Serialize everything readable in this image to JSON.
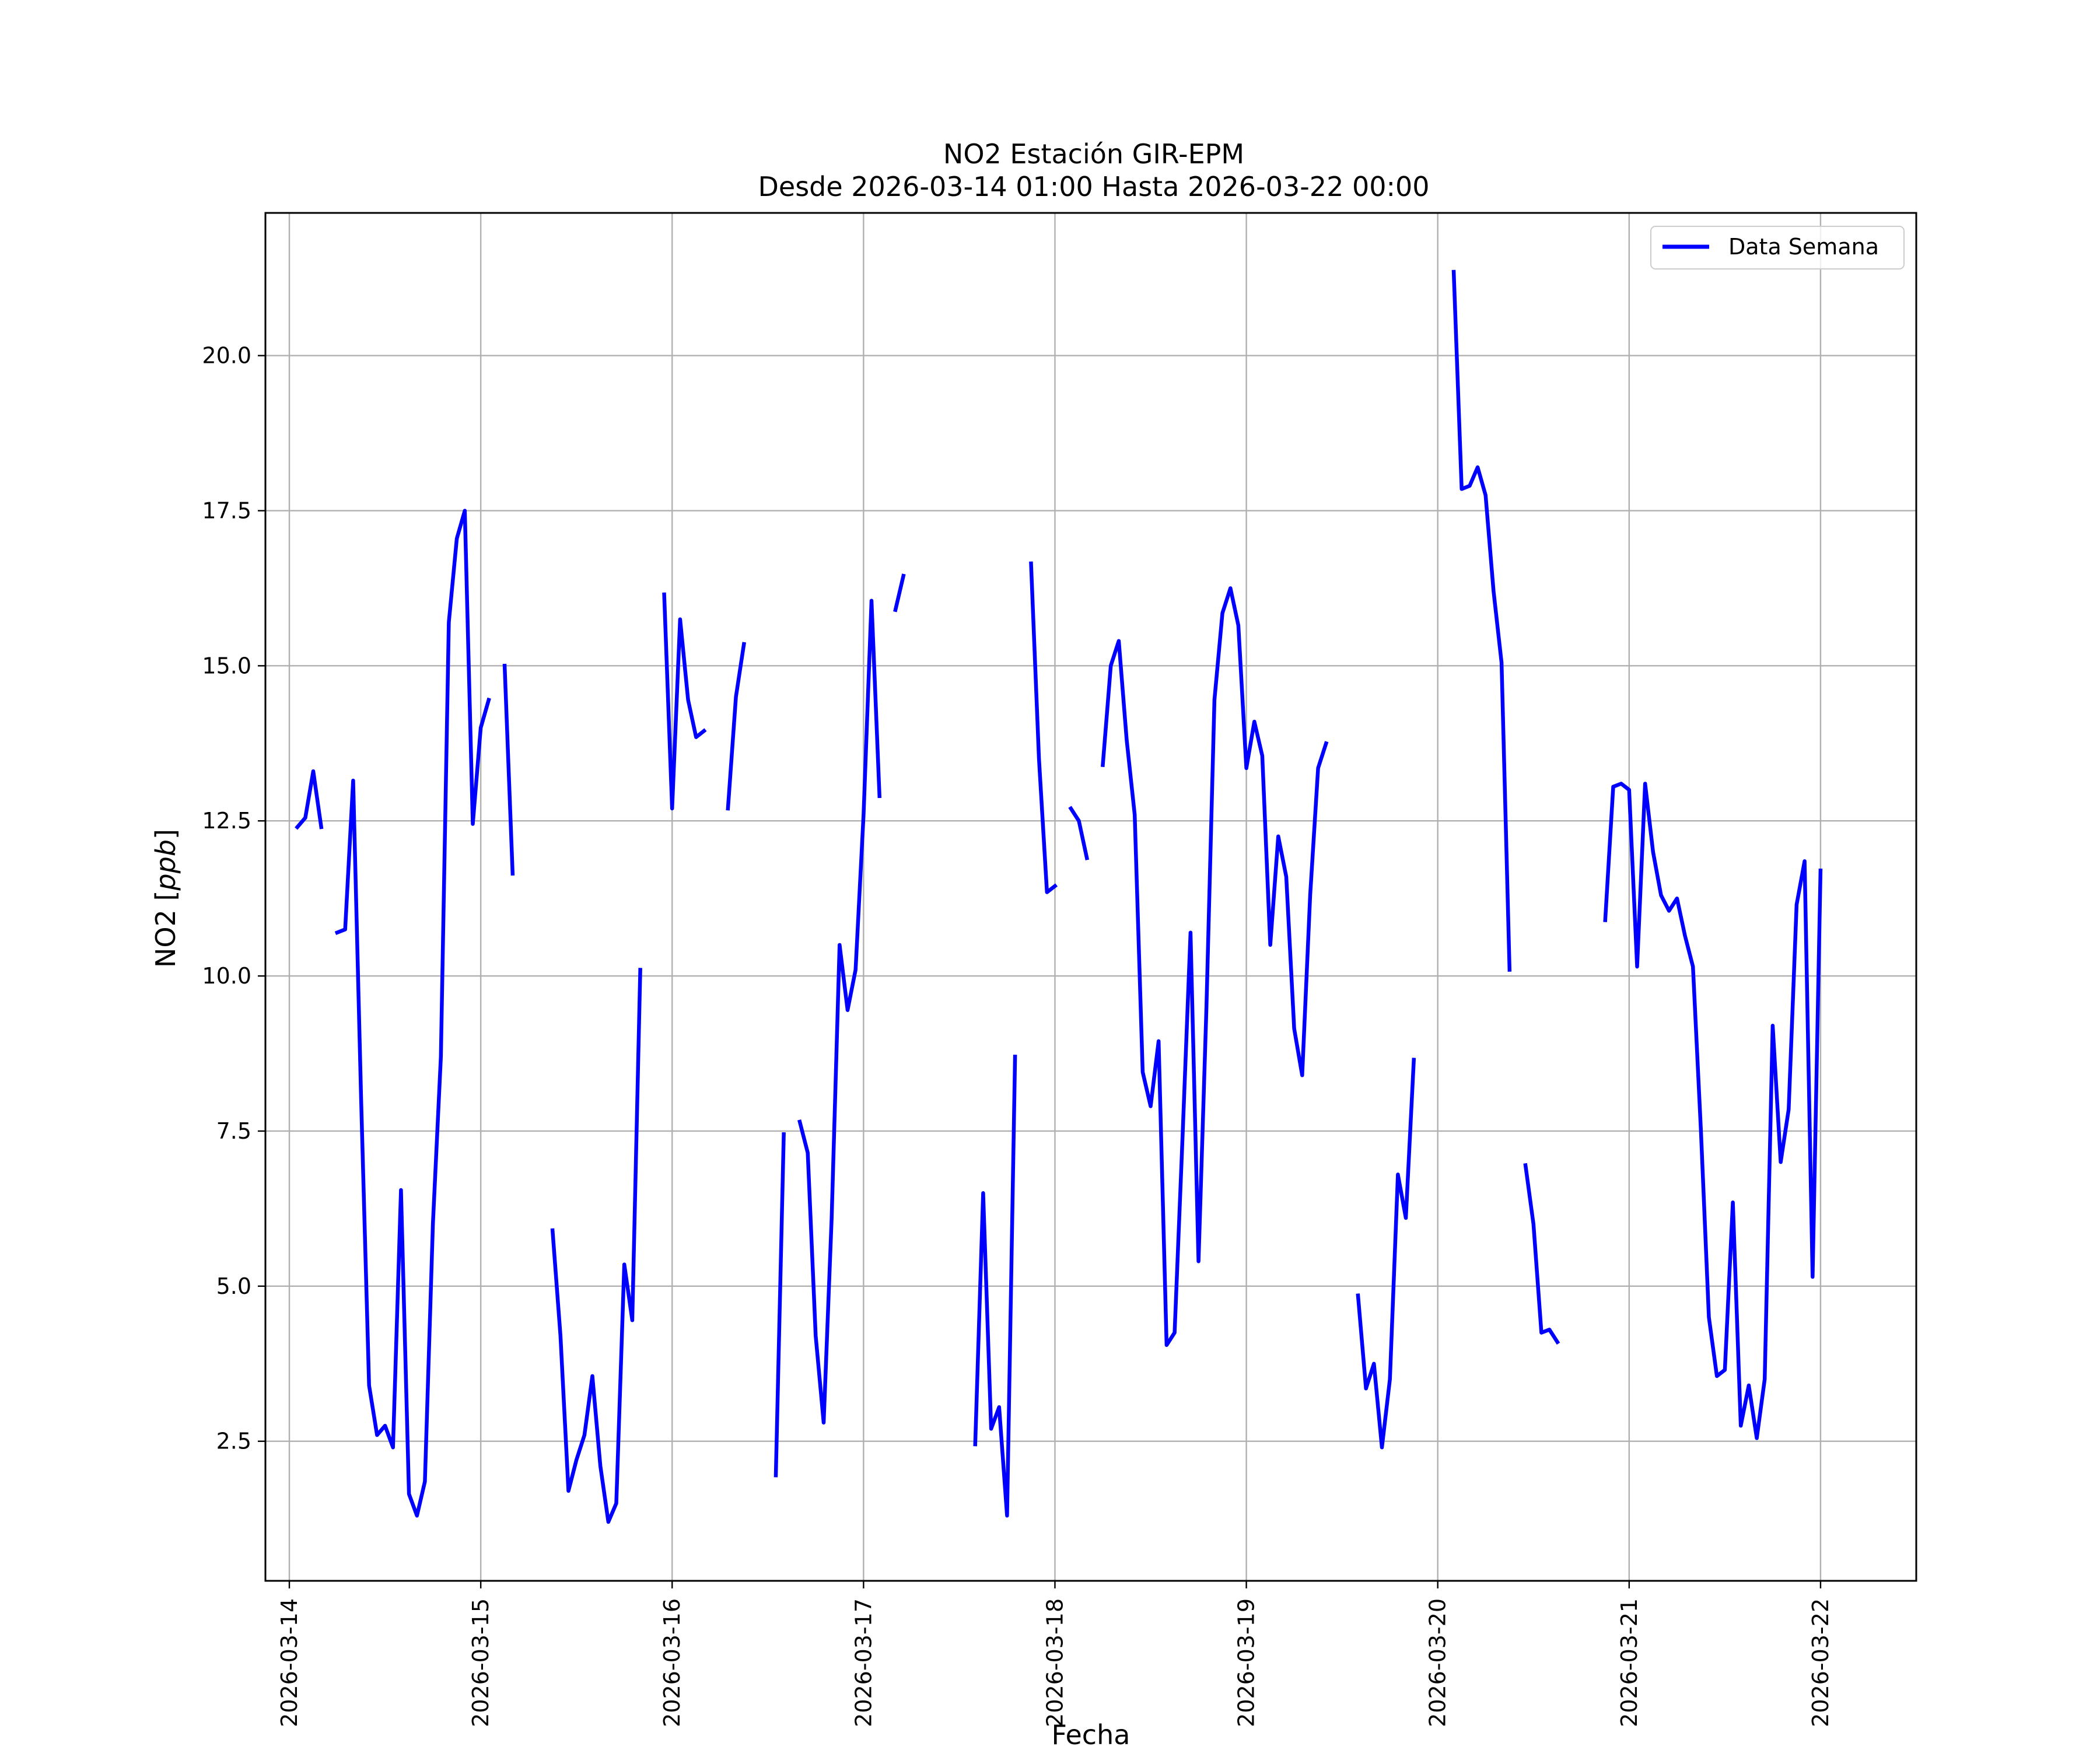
{
  "chart_data": {
    "type": "line",
    "title": "NO2 Estación GIR-EPM",
    "subtitle": "Desde 2026-03-14 01:00 Hasta 2026-03-22 00:00",
    "xlabel": "Fecha",
    "ylabel_main": "NO2 [",
    "ylabel_unit": "ppb",
    "ylabel_close": "]",
    "xlim": [
      "2026-03-13 21:00",
      "2026-03-22 12:00"
    ],
    "ylim": [
      0.25,
      22.3
    ],
    "x_ticks": [
      "2026-03-14",
      "2026-03-15",
      "2026-03-16",
      "2026-03-17",
      "2026-03-18",
      "2026-03-19",
      "2026-03-20",
      "2026-03-21",
      "2026-03-22"
    ],
    "y_ticks": [
      2.5,
      5.0,
      7.5,
      10.0,
      12.5,
      15.0,
      17.5,
      20.0
    ],
    "y_tick_labels": [
      "2.5",
      "5.0",
      "7.5",
      "10.0",
      "12.5",
      "15.0",
      "17.5",
      "20.0"
    ],
    "grid": true,
    "legend_position": "top-right",
    "series": [
      {
        "name": "Data Semana",
        "color": "#0000ff",
        "segments": [
          [
            [
              "2026-03-14 01:00",
              12.4
            ],
            [
              "2026-03-14 02:00",
              12.55
            ],
            [
              "2026-03-14 03:00",
              13.3
            ],
            [
              "2026-03-14 04:00",
              12.4
            ]
          ],
          [
            [
              "2026-03-14 06:00",
              10.7
            ],
            [
              "2026-03-14 07:00",
              10.75
            ],
            [
              "2026-03-14 08:00",
              13.15
            ],
            [
              "2026-03-14 09:00",
              8.0
            ],
            [
              "2026-03-14 10:00",
              3.4
            ],
            [
              "2026-03-14 11:00",
              2.6
            ],
            [
              "2026-03-14 12:00",
              2.75
            ],
            [
              "2026-03-14 13:00",
              2.4
            ],
            [
              "2026-03-14 14:00",
              6.55
            ],
            [
              "2026-03-14 15:00",
              1.65
            ],
            [
              "2026-03-14 16:00",
              1.3
            ],
            [
              "2026-03-14 17:00",
              1.85
            ],
            [
              "2026-03-14 18:00",
              6.0
            ],
            [
              "2026-03-14 19:00",
              8.7
            ],
            [
              "2026-03-14 20:00",
              15.7
            ],
            [
              "2026-03-14 21:00",
              17.05
            ],
            [
              "2026-03-14 22:00",
              17.5
            ],
            [
              "2026-03-14 23:00",
              12.45
            ],
            [
              "2026-03-15 00:00",
              14.0
            ],
            [
              "2026-03-15 01:00",
              14.45
            ]
          ],
          [
            [
              "2026-03-15 03:00",
              15.0
            ],
            [
              "2026-03-15 04:00",
              11.65
            ]
          ],
          [
            [
              "2026-03-15 09:00",
              5.9
            ],
            [
              "2026-03-15 10:00",
              4.2
            ],
            [
              "2026-03-15 11:00",
              1.7
            ],
            [
              "2026-03-15 12:00",
              2.2
            ],
            [
              "2026-03-15 13:00",
              2.6
            ],
            [
              "2026-03-15 14:00",
              3.55
            ],
            [
              "2026-03-15 15:00",
              2.1
            ],
            [
              "2026-03-15 16:00",
              1.2
            ],
            [
              "2026-03-15 17:00",
              1.5
            ],
            [
              "2026-03-15 18:00",
              5.35
            ],
            [
              "2026-03-15 19:00",
              4.45
            ],
            [
              "2026-03-15 20:00",
              10.1
            ]
          ],
          [
            [
              "2026-03-15 23:00",
              16.15
            ],
            [
              "2026-03-16 00:00",
              12.7
            ],
            [
              "2026-03-16 01:00",
              15.75
            ],
            [
              "2026-03-16 02:00",
              14.45
            ],
            [
              "2026-03-16 03:00",
              13.85
            ],
            [
              "2026-03-16 04:00",
              13.95
            ]
          ],
          [
            [
              "2026-03-16 07:00",
              12.7
            ],
            [
              "2026-03-16 08:00",
              14.5
            ],
            [
              "2026-03-16 09:00",
              15.35
            ]
          ],
          [
            [
              "2026-03-16 13:00",
              1.95
            ],
            [
              "2026-03-16 14:00",
              7.45
            ]
          ],
          [
            [
              "2026-03-16 16:00",
              7.65
            ],
            [
              "2026-03-16 17:00",
              7.15
            ],
            [
              "2026-03-16 18:00",
              4.2
            ],
            [
              "2026-03-16 19:00",
              2.8
            ],
            [
              "2026-03-16 20:00",
              6.1
            ],
            [
              "2026-03-16 21:00",
              10.5
            ],
            [
              "2026-03-16 22:00",
              9.45
            ],
            [
              "2026-03-16 23:00",
              10.1
            ],
            [
              "2026-03-17 00:00",
              12.6
            ],
            [
              "2026-03-17 01:00",
              16.05
            ],
            [
              "2026-03-17 02:00",
              12.9
            ]
          ],
          [
            [
              "2026-03-17 04:00",
              15.9
            ],
            [
              "2026-03-17 05:00",
              16.45
            ]
          ],
          [
            [
              "2026-03-17 14:00",
              2.45
            ],
            [
              "2026-03-17 15:00",
              6.5
            ],
            [
              "2026-03-17 16:00",
              2.7
            ],
            [
              "2026-03-17 17:00",
              3.05
            ],
            [
              "2026-03-17 18:00",
              1.3
            ],
            [
              "2026-03-17 19:00",
              8.7
            ]
          ],
          [
            [
              "2026-03-17 21:00",
              16.65
            ],
            [
              "2026-03-17 22:00",
              13.5
            ],
            [
              "2026-03-17 23:00",
              11.35
            ],
            [
              "2026-03-18 00:00",
              11.45
            ]
          ],
          [
            [
              "2026-03-18 02:00",
              12.7
            ],
            [
              "2026-03-18 03:00",
              12.5
            ],
            [
              "2026-03-18 04:00",
              11.9
            ]
          ],
          [
            [
              "2026-03-18 06:00",
              13.4
            ],
            [
              "2026-03-18 07:00",
              15.0
            ],
            [
              "2026-03-18 08:00",
              15.4
            ],
            [
              "2026-03-18 09:00",
              13.8
            ],
            [
              "2026-03-18 10:00",
              12.6
            ],
            [
              "2026-03-18 11:00",
              8.45
            ],
            [
              "2026-03-18 12:00",
              7.9
            ],
            [
              "2026-03-18 13:00",
              8.95
            ],
            [
              "2026-03-18 14:00",
              4.05
            ],
            [
              "2026-03-18 15:00",
              4.25
            ],
            [
              "2026-03-18 16:00",
              7.4
            ],
            [
              "2026-03-18 17:00",
              10.7
            ],
            [
              "2026-03-18 18:00",
              5.4
            ],
            [
              "2026-03-18 19:00",
              9.5
            ],
            [
              "2026-03-18 20:00",
              14.45
            ],
            [
              "2026-03-18 21:00",
              15.85
            ],
            [
              "2026-03-18 22:00",
              16.25
            ],
            [
              "2026-03-18 23:00",
              15.65
            ],
            [
              "2026-03-19 00:00",
              13.35
            ],
            [
              "2026-03-19 01:00",
              14.1
            ],
            [
              "2026-03-19 02:00",
              13.55
            ],
            [
              "2026-03-19 03:00",
              10.5
            ],
            [
              "2026-03-19 04:00",
              12.25
            ],
            [
              "2026-03-19 05:00",
              11.6
            ],
            [
              "2026-03-19 06:00",
              9.15
            ],
            [
              "2026-03-19 07:00",
              8.4
            ],
            [
              "2026-03-19 08:00",
              11.3
            ],
            [
              "2026-03-19 09:00",
              13.35
            ],
            [
              "2026-03-19 10:00",
              13.75
            ]
          ],
          [
            [
              "2026-03-19 14:00",
              4.85
            ],
            [
              "2026-03-19 15:00",
              3.35
            ],
            [
              "2026-03-19 16:00",
              3.75
            ],
            [
              "2026-03-19 17:00",
              2.4
            ],
            [
              "2026-03-19 18:00",
              3.5
            ],
            [
              "2026-03-19 19:00",
              6.8
            ],
            [
              "2026-03-19 20:00",
              6.1
            ],
            [
              "2026-03-19 21:00",
              8.65
            ]
          ],
          [
            [
              "2026-03-20 02:00",
              21.35
            ],
            [
              "2026-03-20 03:00",
              17.85
            ],
            [
              "2026-03-20 04:00",
              17.9
            ],
            [
              "2026-03-20 05:00",
              18.2
            ],
            [
              "2026-03-20 06:00",
              17.75
            ],
            [
              "2026-03-20 07:00",
              16.2
            ],
            [
              "2026-03-20 08:00",
              15.05
            ],
            [
              "2026-03-20 09:00",
              10.1
            ]
          ],
          [
            [
              "2026-03-20 11:00",
              6.95
            ],
            [
              "2026-03-20 12:00",
              6.0
            ],
            [
              "2026-03-20 13:00",
              4.25
            ],
            [
              "2026-03-20 14:00",
              4.3
            ],
            [
              "2026-03-20 15:00",
              4.1
            ]
          ],
          [
            [
              "2026-03-20 21:00",
              10.9
            ],
            [
              "2026-03-20 22:00",
              13.05
            ],
            [
              "2026-03-20 23:00",
              13.1
            ],
            [
              "2026-03-21 00:00",
              13.0
            ],
            [
              "2026-03-21 01:00",
              10.15
            ],
            [
              "2026-03-21 02:00",
              13.1
            ],
            [
              "2026-03-21 03:00",
              12.0
            ],
            [
              "2026-03-21 04:00",
              11.3
            ],
            [
              "2026-03-21 05:00",
              11.05
            ],
            [
              "2026-03-21 06:00",
              11.25
            ],
            [
              "2026-03-21 07:00",
              10.65
            ],
            [
              "2026-03-21 08:00",
              10.15
            ],
            [
              "2026-03-21 09:00",
              7.5
            ],
            [
              "2026-03-21 10:00",
              4.5
            ],
            [
              "2026-03-21 11:00",
              3.55
            ],
            [
              "2026-03-21 12:00",
              3.65
            ],
            [
              "2026-03-21 13:00",
              6.35
            ],
            [
              "2026-03-21 14:00",
              2.75
            ],
            [
              "2026-03-21 15:00",
              3.4
            ],
            [
              "2026-03-21 16:00",
              2.55
            ],
            [
              "2026-03-21 17:00",
              3.5
            ],
            [
              "2026-03-21 18:00",
              9.2
            ],
            [
              "2026-03-21 19:00",
              7.0
            ],
            [
              "2026-03-21 20:00",
              7.85
            ],
            [
              "2026-03-21 21:00",
              11.15
            ],
            [
              "2026-03-21 22:00",
              11.85
            ],
            [
              "2026-03-21 23:00",
              5.15
            ],
            [
              "2026-03-22 00:00",
              11.7
            ]
          ]
        ]
      }
    ]
  }
}
